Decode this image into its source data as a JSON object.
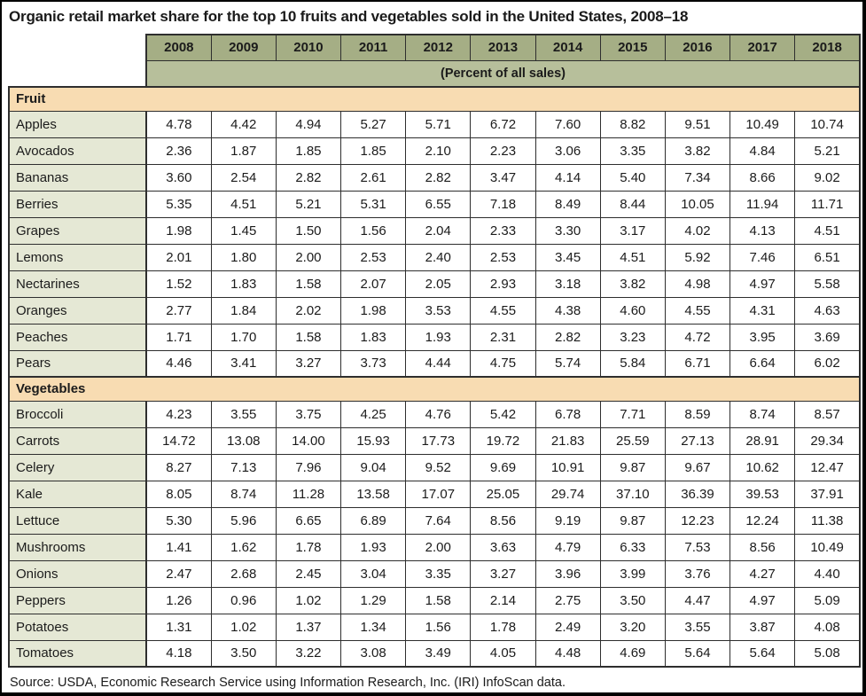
{
  "title": "Organic retail market share for the top 10 fruits and vegetables sold in the United States, 2008–18",
  "chart_data": {
    "type": "table",
    "title": "Organic retail market share for the top 10 fruits and vegetables sold in the United States, 2008–18",
    "columns": [
      "2008",
      "2009",
      "2010",
      "2011",
      "2012",
      "2013",
      "2014",
      "2015",
      "2016",
      "2017",
      "2018"
    ],
    "units_header": "(Percent of all sales)",
    "sections": [
      {
        "label": "Fruit",
        "rows": [
          {
            "label": "Apples",
            "values": [
              "4.78",
              "4.42",
              "4.94",
              "5.27",
              "5.71",
              "6.72",
              "7.60",
              "8.82",
              "9.51",
              "10.49",
              "10.74"
            ]
          },
          {
            "label": "Avocados",
            "values": [
              "2.36",
              "1.87",
              "1.85",
              "1.85",
              "2.10",
              "2.23",
              "3.06",
              "3.35",
              "3.82",
              "4.84",
              "5.21"
            ]
          },
          {
            "label": "Bananas",
            "values": [
              "3.60",
              "2.54",
              "2.82",
              "2.61",
              "2.82",
              "3.47",
              "4.14",
              "5.40",
              "7.34",
              "8.66",
              "9.02"
            ]
          },
          {
            "label": "Berries",
            "values": [
              "5.35",
              "4.51",
              "5.21",
              "5.31",
              "6.55",
              "7.18",
              "8.49",
              "8.44",
              "10.05",
              "11.94",
              "11.71"
            ]
          },
          {
            "label": "Grapes",
            "values": [
              "1.98",
              "1.45",
              "1.50",
              "1.56",
              "2.04",
              "2.33",
              "3.30",
              "3.17",
              "4.02",
              "4.13",
              "4.51"
            ]
          },
          {
            "label": "Lemons",
            "values": [
              "2.01",
              "1.80",
              "2.00",
              "2.53",
              "2.40",
              "2.53",
              "3.45",
              "4.51",
              "5.92",
              "7.46",
              "6.51"
            ]
          },
          {
            "label": "Nectarines",
            "values": [
              "1.52",
              "1.83",
              "1.58",
              "2.07",
              "2.05",
              "2.93",
              "3.18",
              "3.82",
              "4.98",
              "4.97",
              "5.58"
            ]
          },
          {
            "label": "Oranges",
            "values": [
              "2.77",
              "1.84",
              "2.02",
              "1.98",
              "3.53",
              "4.55",
              "4.38",
              "4.60",
              "4.55",
              "4.31",
              "4.63"
            ]
          },
          {
            "label": "Peaches",
            "values": [
              "1.71",
              "1.70",
              "1.58",
              "1.83",
              "1.93",
              "2.31",
              "2.82",
              "3.23",
              "4.72",
              "3.95",
              "3.69"
            ]
          },
          {
            "label": "Pears",
            "values": [
              "4.46",
              "3.41",
              "3.27",
              "3.73",
              "4.44",
              "4.75",
              "5.74",
              "5.84",
              "6.71",
              "6.64",
              "6.02"
            ]
          }
        ]
      },
      {
        "label": "Vegetables",
        "rows": [
          {
            "label": "Broccoli",
            "values": [
              "4.23",
              "3.55",
              "3.75",
              "4.25",
              "4.76",
              "5.42",
              "6.78",
              "7.71",
              "8.59",
              "8.74",
              "8.57"
            ]
          },
          {
            "label": "Carrots",
            "values": [
              "14.72",
              "13.08",
              "14.00",
              "15.93",
              "17.73",
              "19.72",
              "21.83",
              "25.59",
              "27.13",
              "28.91",
              "29.34"
            ]
          },
          {
            "label": "Celery",
            "values": [
              "8.27",
              "7.13",
              "7.96",
              "9.04",
              "9.52",
              "9.69",
              "10.91",
              "9.87",
              "9.67",
              "10.62",
              "12.47"
            ]
          },
          {
            "label": "Kale",
            "values": [
              "8.05",
              "8.74",
              "11.28",
              "13.58",
              "17.07",
              "25.05",
              "29.74",
              "37.10",
              "36.39",
              "39.53",
              "37.91"
            ]
          },
          {
            "label": "Lettuce",
            "values": [
              "5.30",
              "5.96",
              "6.65",
              "6.89",
              "7.64",
              "8.56",
              "9.19",
              "9.87",
              "12.23",
              "12.24",
              "11.38"
            ]
          },
          {
            "label": "Mushrooms",
            "values": [
              "1.41",
              "1.62",
              "1.78",
              "1.93",
              "2.00",
              "3.63",
              "4.79",
              "6.33",
              "7.53",
              "8.56",
              "10.49"
            ]
          },
          {
            "label": "Onions",
            "values": [
              "2.47",
              "2.68",
              "2.45",
              "3.04",
              "3.35",
              "3.27",
              "3.96",
              "3.99",
              "3.76",
              "4.27",
              "4.40"
            ]
          },
          {
            "label": "Peppers",
            "values": [
              "1.26",
              "0.96",
              "1.02",
              "1.29",
              "1.58",
              "2.14",
              "2.75",
              "3.50",
              "4.47",
              "4.97",
              "5.09"
            ]
          },
          {
            "label": "Potatoes",
            "values": [
              "1.31",
              "1.02",
              "1.37",
              "1.34",
              "1.56",
              "1.78",
              "2.49",
              "3.20",
              "3.55",
              "3.87",
              "4.08"
            ]
          },
          {
            "label": "Tomatoes",
            "values": [
              "4.18",
              "3.50",
              "3.22",
              "3.08",
              "3.49",
              "4.05",
              "4.48",
              "4.69",
              "5.64",
              "5.64",
              "5.08"
            ]
          }
        ]
      }
    ],
    "source": "Source: USDA, Economic Research Service using Information Research, Inc. (IRI) InfoScan data.",
    "layout": {
      "legend": "none",
      "grid": "full-cell-borders"
    }
  },
  "colors": {
    "year_header_bg": "#a5ae85",
    "units_band_bg": "#b7bf9b",
    "section_header_bg": "#f8dcb2",
    "row_label_bg": "#e5e8d5",
    "data_cell_bg": "#ffffff",
    "border": "#2e2e2e",
    "frame": "#000000",
    "text": "#1b1b1b"
  }
}
